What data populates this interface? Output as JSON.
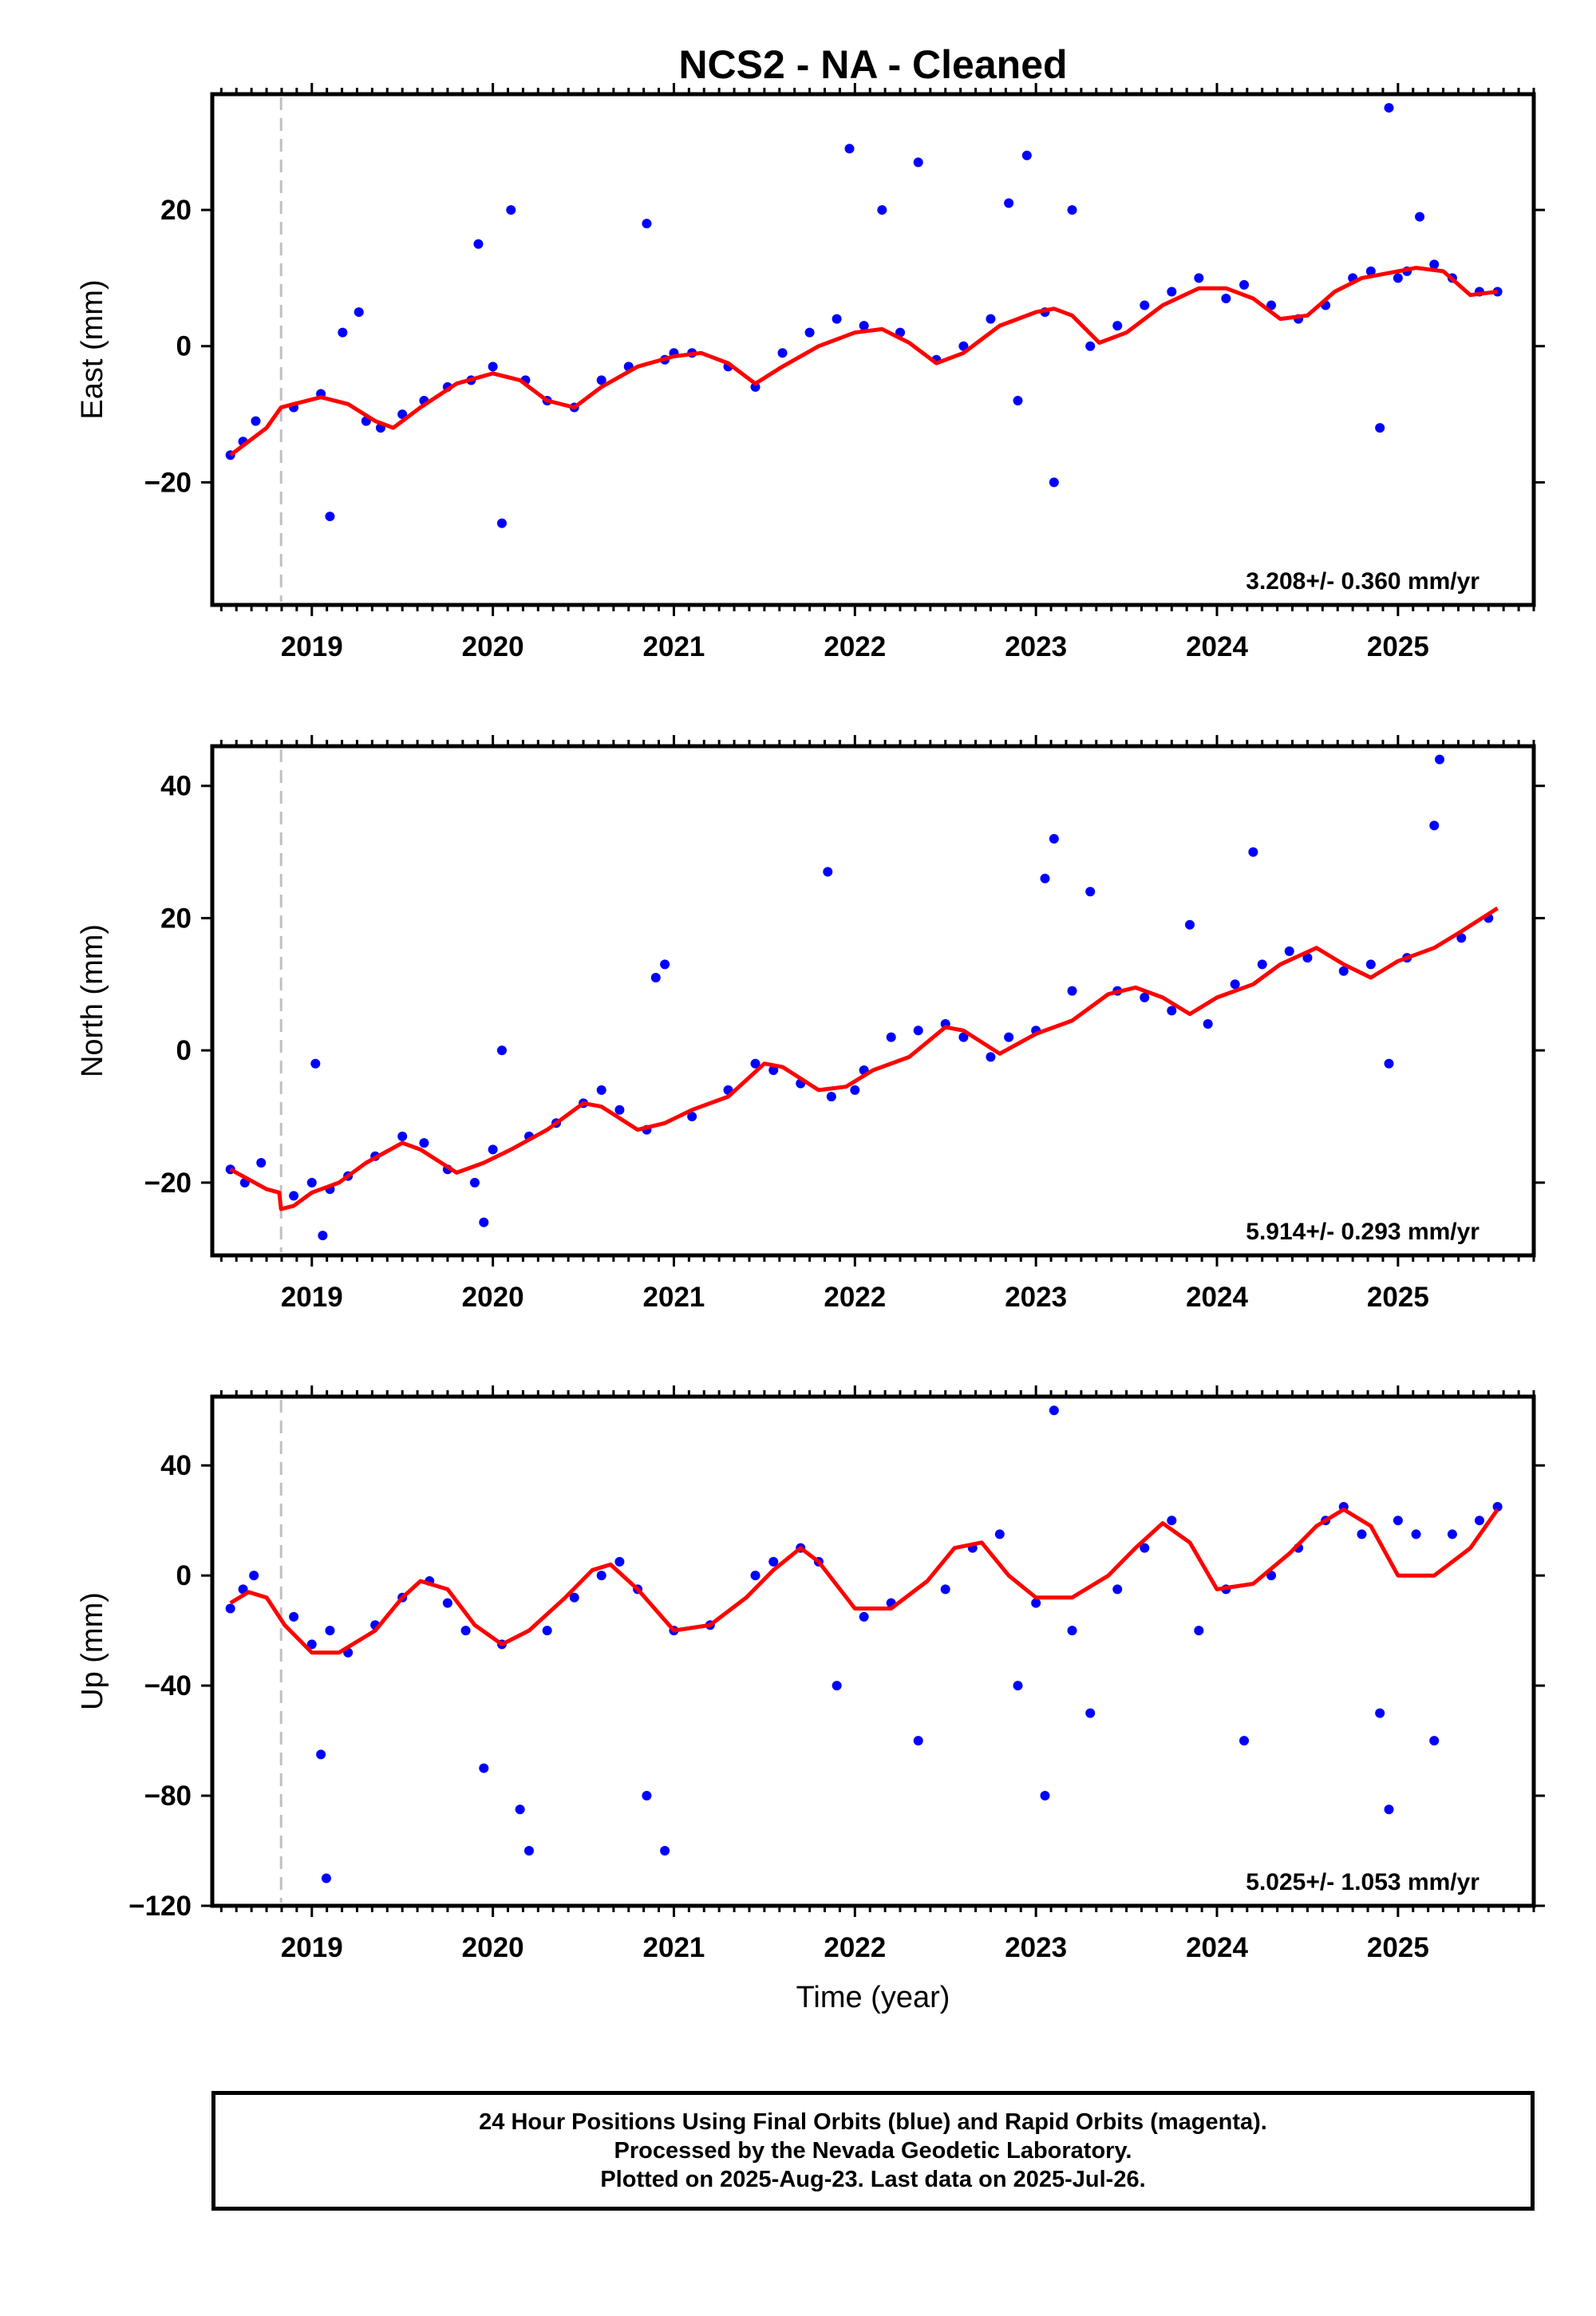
{
  "figure": {
    "title": "NCS2  - NA - Cleaned",
    "xlabel": "Time (year)"
  },
  "colors": {
    "points": "#0000ff",
    "model": "#ff0000",
    "offset_line": "#c0c0c0",
    "frame": "#000000"
  },
  "footer": {
    "line1": "24 Hour Positions Using Final Orbits (blue) and Rapid Orbits (magenta).",
    "line2": "Processed by the Nevada Geodetic Laboratory.",
    "line3": "Plotted on 2025-Aug-23. Last data on 2025-Jul-26."
  },
  "chart_data": [
    {
      "type": "scatter",
      "panel": "east",
      "ylabel": "East (mm)",
      "rate_text": "3.208+/- 0.360 mm/yr",
      "xlim": [
        2018.45,
        2025.75
      ],
      "ylim": [
        -38,
        37
      ],
      "xticks": [
        2019,
        2020,
        2021,
        2022,
        2023,
        2024,
        2025
      ],
      "yticks": [
        -20,
        0,
        20
      ],
      "offset_line_x": 2018.83,
      "grid": false,
      "series": [
        {
          "kind": "points",
          "x": [
            2018.55,
            2018.62,
            2018.69,
            2018.9,
            2019.05,
            2019.1,
            2019.17,
            2019.26,
            2019.3,
            2019.38,
            2019.5,
            2019.62,
            2019.75,
            2019.88,
            2019.92,
            2020.0,
            2020.05,
            2020.1,
            2020.18,
            2020.3,
            2020.45,
            2020.6,
            2020.75,
            2020.85,
            2020.95,
            2021.0,
            2021.1,
            2021.3,
            2021.45,
            2021.6,
            2021.75,
            2021.9,
            2021.97,
            2022.05,
            2022.15,
            2022.25,
            2022.35,
            2022.45,
            2022.6,
            2022.75,
            2022.85,
            2022.9,
            2022.95,
            2023.05,
            2023.1,
            2023.2,
            2023.3,
            2023.45,
            2023.6,
            2023.75,
            2023.9,
            2024.05,
            2024.15,
            2024.3,
            2024.45,
            2024.6,
            2024.75,
            2024.85,
            2024.9,
            2024.95,
            2025.0,
            2025.05,
            2025.12,
            2025.2,
            2025.3,
            2025.45,
            2025.55
          ],
          "y": [
            -16,
            -14,
            -11,
            -9,
            -7,
            -25,
            2,
            5,
            -11,
            -12,
            -10,
            -8,
            -6,
            -5,
            15,
            -3,
            -26,
            20,
            -5,
            -8,
            -9,
            -5,
            -3,
            18,
            -2,
            -1,
            -1,
            -3,
            -6,
            -1,
            2,
            4,
            29,
            3,
            20,
            2,
            27,
            -2,
            0,
            4,
            21,
            -8,
            28,
            5,
            -20,
            20,
            0,
            3,
            6,
            8,
            10,
            7,
            9,
            6,
            4,
            6,
            10,
            11,
            -12,
            35,
            10,
            11,
            19,
            12,
            10,
            8,
            8
          ]
        },
        {
          "kind": "model",
          "x": [
            2018.55,
            2018.65,
            2018.75,
            2018.83,
            2018.9,
            2019.05,
            2019.2,
            2019.35,
            2019.45,
            2019.6,
            2019.8,
            2020.0,
            2020.15,
            2020.3,
            2020.45,
            2020.6,
            2020.8,
            2021.0,
            2021.15,
            2021.3,
            2021.45,
            2021.6,
            2021.8,
            2022.0,
            2022.15,
            2022.3,
            2022.45,
            2022.6,
            2022.8,
            2023.0,
            2023.1,
            2023.2,
            2023.35,
            2023.5,
            2023.7,
            2023.9,
            2024.05,
            2024.2,
            2024.35,
            2024.5,
            2024.65,
            2024.8,
            2025.0,
            2025.1,
            2025.25,
            2025.4,
            2025.55
          ],
          "y": [
            -16,
            -14,
            -12,
            -9,
            -8.5,
            -7.5,
            -8.5,
            -11,
            -12,
            -9,
            -5.5,
            -4,
            -5,
            -8,
            -9,
            -6,
            -3,
            -1.5,
            -1,
            -2.5,
            -5.5,
            -3,
            0,
            2,
            2.5,
            0.5,
            -2.5,
            -1,
            3,
            5,
            5.5,
            4.5,
            0.5,
            2,
            6,
            8.5,
            8.5,
            7,
            4,
            4.5,
            8,
            10,
            11,
            11.5,
            11,
            7.5,
            8
          ]
        }
      ]
    },
    {
      "type": "scatter",
      "panel": "north",
      "ylabel": "North (mm)",
      "rate_text": "5.914+/- 0.293 mm/yr",
      "xlim": [
        2018.45,
        2025.75
      ],
      "ylim": [
        -31,
        46
      ],
      "xticks": [
        2019,
        2020,
        2021,
        2022,
        2023,
        2024,
        2025
      ],
      "yticks": [
        -20,
        0,
        20,
        40
      ],
      "offset_line_x": 2018.83,
      "grid": false,
      "series": [
        {
          "kind": "points",
          "x": [
            2018.55,
            2018.63,
            2018.72,
            2018.9,
            2019.0,
            2019.02,
            2019.06,
            2019.1,
            2019.2,
            2019.35,
            2019.5,
            2019.62,
            2019.75,
            2019.9,
            2019.95,
            2020.0,
            2020.05,
            2020.2,
            2020.35,
            2020.5,
            2020.6,
            2020.7,
            2020.85,
            2020.9,
            2020.95,
            2021.1,
            2021.3,
            2021.45,
            2021.55,
            2021.7,
            2021.85,
            2021.87,
            2022.0,
            2022.05,
            2022.2,
            2022.35,
            2022.5,
            2022.6,
            2022.75,
            2022.85,
            2023.0,
            2023.05,
            2023.1,
            2023.2,
            2023.3,
            2023.45,
            2023.6,
            2023.75,
            2023.85,
            2023.95,
            2024.1,
            2024.2,
            2024.25,
            2024.4,
            2024.5,
            2024.7,
            2024.85,
            2024.95,
            2025.05,
            2025.2,
            2025.23,
            2025.35,
            2025.5
          ],
          "y": [
            -18,
            -20,
            -17,
            -22,
            -20,
            -2,
            -28,
            -21,
            -19,
            -16,
            -13,
            -14,
            -18,
            -20,
            -26,
            -15,
            0,
            -13,
            -11,
            -8,
            -6,
            -9,
            -12,
            11,
            13,
            -10,
            -6,
            -2,
            -3,
            -5,
            27,
            -7,
            -6,
            -3,
            2,
            3,
            4,
            2,
            -1,
            2,
            3,
            26,
            32,
            9,
            24,
            9,
            8,
            6,
            19,
            4,
            10,
            30,
            13,
            15,
            14,
            12,
            13,
            -2,
            14,
            34,
            44,
            17,
            20
          ]
        },
        {
          "kind": "model",
          "x": [
            2018.55,
            2018.65,
            2018.75,
            2018.82,
            2018.83,
            2018.9,
            2019.0,
            2019.15,
            2019.3,
            2019.5,
            2019.6,
            2019.8,
            2019.95,
            2020.1,
            2020.3,
            2020.5,
            2020.6,
            2020.8,
            2020.95,
            2021.1,
            2021.3,
            2021.5,
            2021.6,
            2021.8,
            2021.95,
            2022.1,
            2022.3,
            2022.5,
            2022.6,
            2022.8,
            2023.0,
            2023.2,
            2023.4,
            2023.55,
            2023.7,
            2023.85,
            2024.0,
            2024.2,
            2024.35,
            2024.55,
            2024.7,
            2024.85,
            2025.0,
            2025.2,
            2025.35,
            2025.55
          ],
          "y": [
            -18,
            -19.5,
            -21,
            -21.5,
            -24,
            -23.5,
            -21.5,
            -20,
            -17,
            -14,
            -15,
            -18.5,
            -17,
            -15,
            -12,
            -8,
            -8.5,
            -12,
            -11,
            -9,
            -7,
            -2,
            -2.5,
            -6,
            -5.5,
            -3,
            -1,
            3.5,
            3,
            -0.5,
            2.5,
            4.5,
            8.5,
            9.5,
            8,
            5.5,
            8,
            10,
            13,
            15.5,
            13,
            11,
            13.5,
            15.5,
            18,
            21.5
          ]
        }
      ]
    },
    {
      "type": "scatter",
      "panel": "up",
      "ylabel": "Up (mm)",
      "rate_text": "5.025+/- 1.053 mm/yr",
      "xlim": [
        2018.45,
        2025.75
      ],
      "ylim": [
        -120,
        65
      ],
      "xticks": [
        2019,
        2020,
        2021,
        2022,
        2023,
        2024,
        2025
      ],
      "yticks": [
        -120,
        -80,
        -40,
        0,
        40
      ],
      "offset_line_x": 2018.83,
      "grid": false,
      "series": [
        {
          "kind": "points",
          "x": [
            2018.55,
            2018.62,
            2018.68,
            2018.9,
            2019.0,
            2019.05,
            2019.08,
            2019.1,
            2019.2,
            2019.35,
            2019.5,
            2019.65,
            2019.75,
            2019.85,
            2019.95,
            2020.05,
            2020.15,
            2020.2,
            2020.3,
            2020.45,
            2020.6,
            2020.7,
            2020.8,
            2020.85,
            2020.95,
            2021.0,
            2021.2,
            2021.45,
            2021.55,
            2021.7,
            2021.8,
            2021.9,
            2022.05,
            2022.2,
            2022.35,
            2022.5,
            2022.65,
            2022.8,
            2022.9,
            2023.0,
            2023.05,
            2023.1,
            2023.2,
            2023.3,
            2023.45,
            2023.6,
            2023.75,
            2023.9,
            2024.05,
            2024.15,
            2024.3,
            2024.45,
            2024.6,
            2024.7,
            2024.8,
            2024.9,
            2024.95,
            2025.0,
            2025.1,
            2025.2,
            2025.3,
            2025.45,
            2025.55
          ],
          "y": [
            -12,
            -5,
            0,
            -15,
            -25,
            -65,
            -110,
            -20,
            -28,
            -18,
            -8,
            -2,
            -10,
            -20,
            -70,
            -25,
            -85,
            -100,
            -20,
            -8,
            0,
            5,
            -5,
            -80,
            -100,
            -20,
            -18,
            0,
            5,
            10,
            5,
            -40,
            -15,
            -10,
            -60,
            -5,
            10,
            15,
            -40,
            -10,
            -80,
            60,
            -20,
            -50,
            -5,
            10,
            20,
            -20,
            -5,
            -60,
            0,
            10,
            20,
            25,
            15,
            -50,
            -85,
            20,
            15,
            -60,
            15,
            20,
            25
          ]
        },
        {
          "kind": "model",
          "x": [
            2018.55,
            2018.65,
            2018.75,
            2018.85,
            2019.0,
            2019.15,
            2019.35,
            2019.5,
            2019.6,
            2019.75,
            2019.9,
            2020.05,
            2020.2,
            2020.4,
            2020.55,
            2020.65,
            2020.8,
            2021.0,
            2021.2,
            2021.4,
            2021.55,
            2021.7,
            2021.8,
            2022.0,
            2022.2,
            2022.4,
            2022.55,
            2022.7,
            2022.85,
            2023.0,
            2023.2,
            2023.4,
            2023.55,
            2023.7,
            2023.85,
            2024.0,
            2024.2,
            2024.4,
            2024.55,
            2024.7,
            2024.85,
            2025.0,
            2025.2,
            2025.4,
            2025.55
          ],
          "y": [
            -10,
            -6,
            -8,
            -18,
            -28,
            -28,
            -20,
            -8,
            -2,
            -5,
            -18,
            -25,
            -20,
            -8,
            2,
            4,
            -5,
            -20,
            -18,
            -8,
            2,
            10,
            5,
            -12,
            -12,
            -2,
            10,
            12,
            0,
            -8,
            -8,
            0,
            10,
            19,
            12,
            -5,
            -3,
            8,
            18,
            24,
            18,
            0,
            0,
            10,
            24
          ]
        }
      ]
    }
  ]
}
